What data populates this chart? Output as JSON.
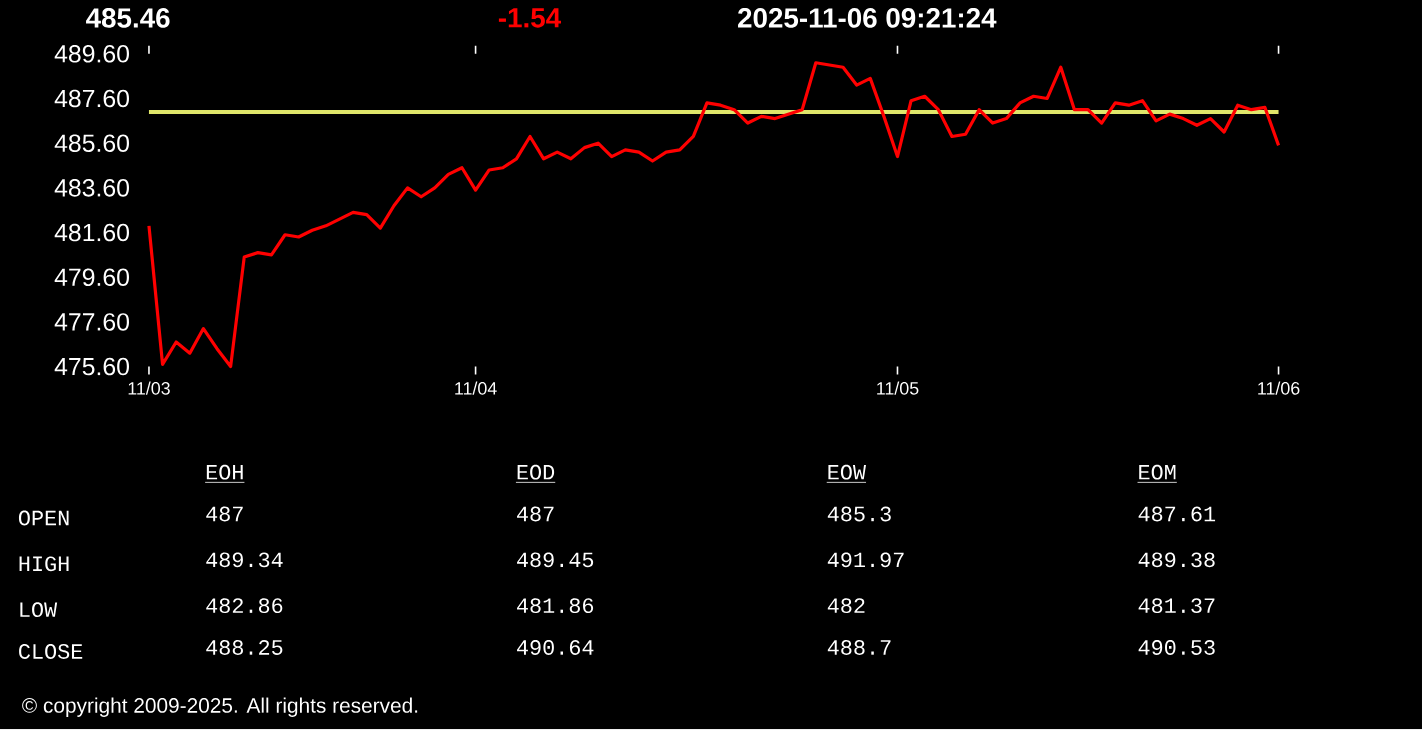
{
  "chart_data": [
    {
      "type": "line",
      "color": "#ff0000",
      "marker": "none",
      "line_style": "solid",
      "annotations": [
        "485.46",
        "-1.54",
        "2025-11-06 09:21:24"
      ],
      "ylim": [
        475.6,
        489.6
      ],
      "yticks": [
        {
          "value": 475.6,
          "label": "475.60"
        },
        {
          "value": 477.6,
          "label": "477.60"
        },
        {
          "value": 479.6,
          "label": "479.60"
        },
        {
          "value": 481.6,
          "label": "481.60"
        },
        {
          "value": 483.6,
          "label": "483.60"
        },
        {
          "value": 485.6,
          "label": "485.60"
        },
        {
          "value": 487.6,
          "label": "487.60"
        },
        {
          "value": 489.6,
          "label": "489.60"
        }
      ],
      "ref_lines": [
        {
          "axis": "y",
          "value": 487,
          "color": "#dfe66a"
        }
      ],
      "categories": [
        "11/03",
        null,
        null,
        null,
        null,
        null,
        null,
        null,
        null,
        null,
        null,
        null,
        null,
        null,
        null,
        null,
        null,
        null,
        null,
        null,
        null,
        null,
        null,
        null,
        "11/04",
        null,
        null,
        null,
        null,
        null,
        null,
        null,
        null,
        null,
        null,
        null,
        null,
        null,
        null,
        null,
        null,
        null,
        null,
        null,
        null,
        null,
        null,
        null,
        null,
        null,
        null,
        null,
        null,
        null,
        null,
        "11/05",
        null,
        null,
        null,
        null,
        null,
        null,
        null,
        null,
        null,
        null,
        null,
        null,
        null,
        null,
        null,
        null,
        null,
        null,
        null,
        null,
        null,
        null,
        null,
        null,
        null,
        null,
        null,
        "11/06"
      ],
      "values": [
        481.9,
        475.7,
        476.7,
        476.2,
        477.3,
        476.4,
        475.6,
        480.5,
        480.7,
        480.6,
        481.5,
        481.4,
        481.7,
        481.9,
        482.2,
        482.5,
        482.4,
        481.8,
        482.8,
        483.6,
        483.2,
        483.6,
        484.2,
        484.5,
        483.5,
        484.4,
        484.5,
        484.9,
        485.9,
        484.9,
        485.2,
        484.9,
        485.4,
        485.6,
        485.0,
        485.3,
        485.2,
        484.8,
        485.2,
        485.3,
        485.9,
        487.4,
        487.3,
        487.1,
        486.5,
        486.8,
        486.7,
        486.9,
        487.1,
        489.2,
        489.1,
        489.0,
        488.2,
        488.5,
        486.8,
        485.0,
        487.5,
        487.7,
        487.1,
        485.9,
        486.0,
        487.1,
        486.5,
        486.7,
        487.4,
        487.7,
        487.6,
        489.0,
        487.1,
        487.1,
        486.5,
        487.4,
        487.3,
        487.5,
        486.6,
        486.9,
        486.7,
        486.4,
        486.7,
        486.1,
        487.3,
        487.1,
        487.2,
        485.5
      ]
    },
    {
      "type": "other",
      "categories": [
        "EOH",
        "EOD",
        "EOW",
        "EOM"
      ],
      "y_categories": [
        "OPEN",
        "HIGH",
        "LOW",
        "CLOSE"
      ],
      "cell_labels": [
        [
          "487",
          "487",
          "485.3",
          "487.61"
        ],
        [
          "489.34",
          "489.45",
          "491.97",
          "489.38"
        ],
        [
          "482.86",
          "481.86",
          "482",
          "481.37"
        ],
        [
          "488.25",
          "490.64",
          "488.7",
          "490.53"
        ]
      ],
      "annotations": [
        "© copyright 2009-2025. All rights reserved."
      ]
    }
  ]
}
